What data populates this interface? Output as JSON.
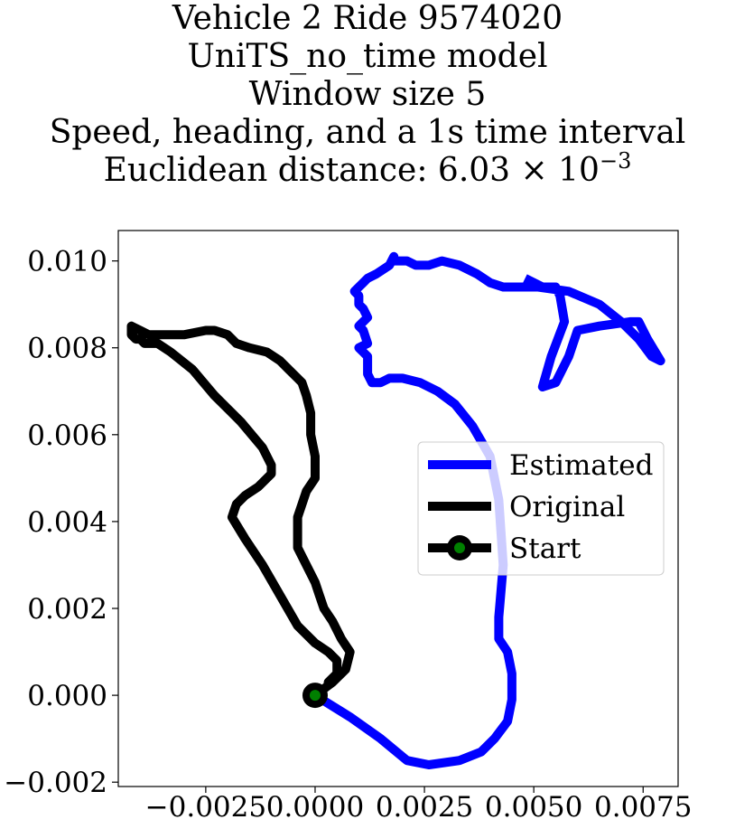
{
  "chart_data": {
    "type": "line",
    "title_lines": [
      "Vehicle 2 Ride 9574020",
      "UniTS_no_time model",
      "Window size 5",
      "Speed, heading, and a 1s time interval"
    ],
    "distance_label": "Euclidean distance: 6.03",
    "distance_times": "× 10",
    "distance_exponent": "−3",
    "xlim": [
      -0.0045,
      0.0083
    ],
    "ylim": [
      -0.0021,
      0.0107
    ],
    "xticks": [
      -0.0025,
      0.0,
      0.0025,
      0.005,
      0.0075
    ],
    "xtick_labels": [
      "−0.0025",
      "0.0000",
      "0.0025",
      "0.0050",
      "0.0075"
    ],
    "yticks": [
      -0.002,
      0.0,
      0.002,
      0.004,
      0.006,
      0.008,
      0.01
    ],
    "ytick_labels": [
      "−0.002",
      "0.000",
      "0.002",
      "0.004",
      "0.006",
      "0.008",
      "0.010"
    ],
    "grid": false,
    "legend_position": "center-right",
    "series": [
      {
        "name": "Estimated",
        "color": "#0000ff",
        "x": [
          0.0,
          0.0008,
          0.0015,
          0.0021,
          0.0026,
          0.0033,
          0.0038,
          0.0041,
          0.0044,
          0.0045,
          0.0045,
          0.0044,
          0.0042,
          0.0042,
          0.0043,
          0.0042,
          0.004,
          0.0036,
          0.0032,
          0.0028,
          0.0024,
          0.002,
          0.0017,
          0.0015,
          0.0013,
          0.0012,
          0.0012,
          0.0012,
          0.0011,
          0.001,
          0.0012,
          0.0011,
          0.001,
          0.0012,
          0.0011,
          0.001,
          0.001,
          0.0009,
          0.001,
          0.0011,
          0.0012,
          0.0014,
          0.0017,
          0.0018,
          0.0018,
          0.0019,
          0.0021,
          0.0023,
          0.0026,
          0.0029,
          0.0033,
          0.0037,
          0.004,
          0.0043,
          0.0047,
          0.0051,
          0.0058,
          0.0065,
          0.007,
          0.0074,
          0.0077,
          0.0079,
          0.0076,
          0.0074,
          0.0072,
          0.0065,
          0.006,
          0.0058,
          0.0055,
          0.0052,
          0.0054,
          0.0057,
          0.0056,
          0.0055,
          0.0052,
          0.0048
        ],
        "y": [
          0.0,
          -0.0005,
          -0.001,
          -0.0015,
          -0.0016,
          -0.0015,
          -0.0013,
          -0.001,
          -0.0006,
          -0.0001,
          0.0005,
          0.001,
          0.0013,
          0.0018,
          0.003,
          0.0045,
          0.0055,
          0.0062,
          0.0067,
          0.007,
          0.0072,
          0.0073,
          0.0073,
          0.0072,
          0.0072,
          0.0074,
          0.0076,
          0.0078,
          0.0079,
          0.008,
          0.0081,
          0.0084,
          0.0085,
          0.0087,
          0.0089,
          0.009,
          0.0092,
          0.0093,
          0.0094,
          0.0095,
          0.0096,
          0.0097,
          0.0099,
          0.0101,
          0.01,
          0.01,
          0.01,
          0.0099,
          0.0099,
          0.01,
          0.0099,
          0.0097,
          0.0095,
          0.0094,
          0.0094,
          0.0094,
          0.0093,
          0.009,
          0.0086,
          0.0082,
          0.0078,
          0.0077,
          0.0082,
          0.0086,
          0.0086,
          0.0085,
          0.0084,
          0.0078,
          0.0072,
          0.0071,
          0.0078,
          0.0086,
          0.0092,
          0.0094,
          0.0094,
          0.0096
        ]
      },
      {
        "name": "Original",
        "color": "#000000",
        "x": [
          0.0,
          0.0004,
          0.0007,
          0.0008,
          0.0006,
          0.0004,
          0.0002,
          0.0001,
          0.0,
          -0.0002,
          -0.0004,
          -0.0004,
          -0.0002,
          0.0,
          0.0,
          -0.0001,
          -0.0001,
          -0.0002,
          -0.0003,
          -0.0004,
          -0.0006,
          -0.0008,
          -0.0011,
          -0.0015,
          -0.0018,
          -0.002,
          -0.0023,
          -0.0025,
          -0.003,
          -0.0034,
          -0.0038,
          -0.004,
          -0.0042,
          -0.0042,
          -0.0041,
          -0.004,
          -0.0039,
          -0.0038,
          -0.0036,
          -0.0033,
          -0.0028,
          -0.0023,
          -0.0017,
          -0.0012,
          -0.001,
          -0.001,
          -0.0011,
          -0.0013,
          -0.0016,
          -0.0018,
          -0.0019,
          -0.0016,
          -0.0012,
          -0.0008,
          -0.0004,
          0.0,
          0.0003,
          0.0005,
          0.0005,
          0.0004,
          0.0003,
          0.0003
        ],
        "y": [
          0.0,
          0.0003,
          0.0006,
          0.001,
          0.0013,
          0.0017,
          0.002,
          0.0023,
          0.0026,
          0.003,
          0.0034,
          0.0041,
          0.0047,
          0.005,
          0.0055,
          0.006,
          0.0065,
          0.0069,
          0.0072,
          0.0073,
          0.0075,
          0.0077,
          0.0079,
          0.008,
          0.0081,
          0.0083,
          0.0084,
          0.0084,
          0.0083,
          0.0083,
          0.0083,
          0.0084,
          0.0085,
          0.0083,
          0.0082,
          0.0082,
          0.0081,
          0.0081,
          0.0081,
          0.0079,
          0.0075,
          0.0069,
          0.0063,
          0.0057,
          0.0053,
          0.0051,
          0.005,
          0.0048,
          0.0046,
          0.0044,
          0.0041,
          0.0036,
          0.003,
          0.0023,
          0.0016,
          0.0012,
          0.001,
          0.0008,
          0.0005,
          0.0004,
          0.0003,
          0.0002
        ]
      },
      {
        "name": "Start",
        "color": "#000000",
        "marker_fill": "#008000",
        "x": [
          0.0
        ],
        "y": [
          0.0
        ]
      }
    ]
  }
}
